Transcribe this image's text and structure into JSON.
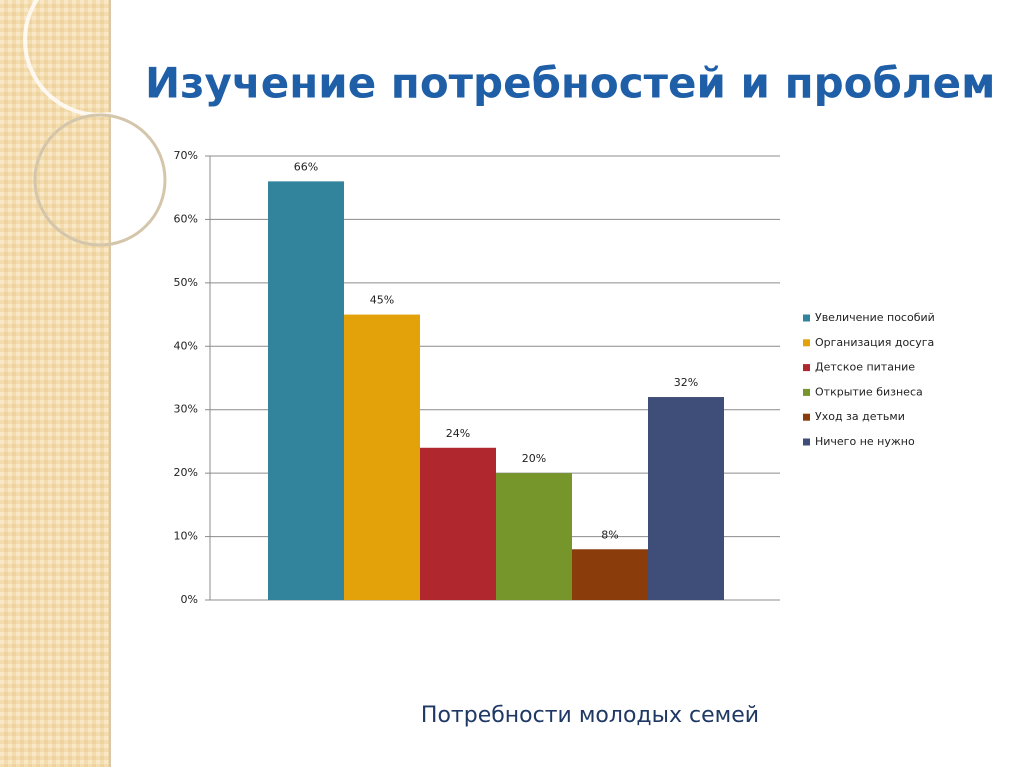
{
  "chart_data": {
    "type": "bar",
    "title": "Изучение потребностей и проблем",
    "caption": "Потребности молодых семей",
    "series": [
      {
        "name": "Увеличение пособий",
        "color": "#31849b",
        "values": [
          66
        ],
        "value_labels": [
          "66%"
        ]
      },
      {
        "name": "Организация досуга",
        "color": "#e3a20a",
        "values": [
          45
        ],
        "value_labels": [
          "45%"
        ]
      },
      {
        "name": "Детское питание",
        "color": "#b0272d",
        "values": [
          24
        ],
        "value_labels": [
          "24%"
        ]
      },
      {
        "name": "Открытие бизнеса",
        "color": "#76962c",
        "values": [
          20
        ],
        "value_labels": [
          "20%"
        ]
      },
      {
        "name": "Уход за детьми",
        "color": "#8a3c0a",
        "values": [
          8
        ],
        "value_labels": [
          "8%"
        ]
      },
      {
        "name": "Ничего не нужно",
        "color": "#3f4e78",
        "values": [
          32
        ],
        "value_labels": [
          "32%"
        ]
      }
    ],
    "ylim": [
      0,
      70
    ],
    "yticks": [
      {
        "value": 0,
        "label": "0%"
      },
      {
        "value": 10,
        "label": "10%"
      },
      {
        "value": 20,
        "label": "20%"
      },
      {
        "value": 30,
        "label": "30%"
      },
      {
        "value": 40,
        "label": "40%"
      },
      {
        "value": 50,
        "label": "50%"
      },
      {
        "value": 60,
        "label": "60%"
      },
      {
        "value": 70,
        "label": "70%"
      }
    ],
    "grid": true,
    "legend": "right"
  }
}
